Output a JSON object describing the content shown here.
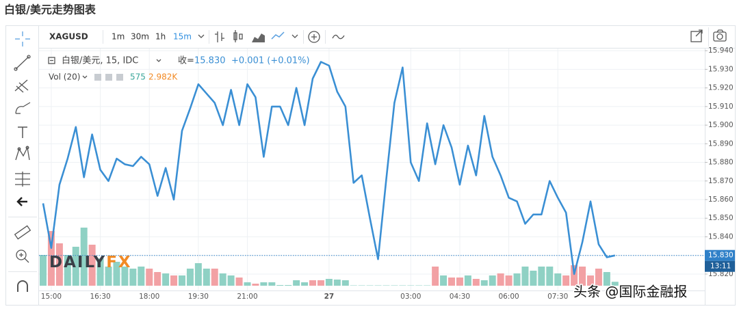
{
  "page": {
    "title": "白银/美元走势图表",
    "source": "头条 @国际金融报"
  },
  "toolbar": {
    "symbol": "XAGUSD",
    "intervals": [
      "1m",
      "30m",
      "1h",
      "15m"
    ]
  },
  "chart_data": {
    "type": "line",
    "title": "白银/美元, 15, IDC",
    "close_label": "收=",
    "close_value": "15.830",
    "change": "+0.001 (+0.01%)",
    "watermark": [
      "DAILY",
      "FX"
    ],
    "categories": [
      null,
      "15:00",
      null,
      null,
      null,
      null,
      null,
      "16:30",
      null,
      null,
      null,
      null,
      null,
      "18:00",
      null,
      null,
      null,
      null,
      null,
      "19:30",
      null,
      null,
      null,
      null,
      null,
      "21:00",
      null,
      null,
      null,
      null,
      null,
      null,
      null,
      null,
      null,
      "27",
      null,
      null,
      null,
      null,
      null,
      null,
      null,
      null,
      null,
      "03:00",
      null,
      null,
      null,
      null,
      null,
      "04:30",
      null,
      null,
      null,
      null,
      null,
      "06:00",
      null,
      null,
      null,
      null,
      null,
      "07:30",
      null,
      null,
      null,
      null,
      null,
      null,
      null
    ],
    "series": [
      {
        "name": "XAGUSD",
        "color": "#3a8fd4",
        "values": [
          15.858,
          15.834,
          15.868,
          15.882,
          15.899,
          15.872,
          15.895,
          15.876,
          15.87,
          15.882,
          15.879,
          15.878,
          15.883,
          15.879,
          15.862,
          15.877,
          15.86,
          15.897,
          15.909,
          15.922,
          15.917,
          15.912,
          15.9,
          15.919,
          15.9,
          15.922,
          15.915,
          15.883,
          15.91,
          15.91,
          15.9,
          15.92,
          15.9,
          15.925,
          15.934,
          15.932,
          15.918,
          15.91,
          15.869,
          15.873,
          15.85,
          15.828,
          15.871,
          15.912,
          15.931,
          15.88,
          15.87,
          15.901,
          15.879,
          15.9,
          15.888,
          15.868,
          15.889,
          15.873,
          15.905,
          15.883,
          15.873,
          15.861,
          15.859,
          15.847,
          15.852,
          15.852,
          15.87,
          15.861,
          15.853,
          15.82,
          15.837,
          15.859,
          15.836,
          15.829,
          15.83
        ]
      }
    ],
    "ylim": [
      15.813,
      15.943
    ],
    "yticks": [
      {
        "value": 15.82,
        "label": "15.820"
      },
      {
        "value": 15.83,
        "label": "15.830"
      },
      {
        "value": 15.84,
        "label": "15.840"
      },
      {
        "value": 15.85,
        "label": "15.850"
      },
      {
        "value": 15.86,
        "label": "15.860"
      },
      {
        "value": 15.87,
        "label": "15.870"
      },
      {
        "value": 15.88,
        "label": "15.880"
      },
      {
        "value": 15.89,
        "label": "15.890"
      },
      {
        "value": 15.9,
        "label": "15.900"
      },
      {
        "value": 15.91,
        "label": "15.910"
      },
      {
        "value": 15.92,
        "label": "15.920"
      },
      {
        "value": 15.93,
        "label": "15.930"
      },
      {
        "value": 15.94,
        "label": "15.940"
      }
    ],
    "grid": true,
    "last_price": {
      "value": 15.83,
      "label": "15.830",
      "countdown": "13:11",
      "color": "#2f80c8"
    },
    "volume": {
      "name": "Vol (20)",
      "last_label": "575",
      "ma_label": "2.982K",
      "ylim": [
        0,
        12000
      ],
      "values": [
        4500,
        8000,
        6200,
        4500,
        5700,
        8500,
        6000,
        4000,
        2800,
        3500,
        2800,
        2500,
        2800,
        2500,
        2000,
        1800,
        1500,
        1500,
        2500,
        3300,
        2500,
        2500,
        1800,
        1500,
        1200,
        500,
        300,
        500,
        500,
        100,
        100,
        800,
        500,
        800,
        800,
        1000,
        900,
        800,
        50,
        50,
        50,
        50,
        50,
        50,
        50,
        50,
        50,
        50,
        2800,
        1500,
        1200,
        1200,
        1500,
        1000,
        800,
        1500,
        1800,
        1500,
        1800,
        2800,
        2200,
        2800,
        2800,
        1800,
        1500,
        3000,
        2800,
        1500,
        2500,
        2000,
        575
      ],
      "colors": [
        "#8fd1c4",
        "#f2a1a4",
        "#f2a1a4",
        "#8fd1c4",
        "#8fd1c4",
        "#8fd1c4",
        "#f2a1a4",
        "#8fd1c4",
        "#8fd1c4",
        "#8fd1c4",
        "#8fd1c4",
        "#8fd1c4",
        "#8fd1c4",
        "#f2a1a4",
        "#f2a1a4",
        "#8fd1c4",
        "#f2a1a4",
        "#8fd1c4",
        "#8fd1c4",
        "#8fd1c4",
        "#8fd1c4",
        "#f2a1a4",
        "#8fd1c4",
        "#8fd1c4",
        "#f2a1a4",
        "#8fd1c4",
        "#f2a1a4",
        "#8fd1c4",
        "#8fd1c4",
        "#8fd1c4",
        "#8fd1c4",
        "#8fd1c4",
        "#8fd1c4",
        "#f2a1a4",
        "#f2a1a4",
        "#8fd1c4",
        "#8fd1c4",
        "#8fd1c4",
        "#8fd1c4",
        "#8fd1c4",
        "#8fd1c4",
        "#8fd1c4",
        "#8fd1c4",
        "#8fd1c4",
        "#8fd1c4",
        "#8fd1c4",
        "#8fd1c4",
        "#8fd1c4",
        "#f2a1a4",
        "#8fd1c4",
        "#f2a1a4",
        "#f2a1a4",
        "#8fd1c4",
        "#f2a1a4",
        "#8fd1c4",
        "#8fd1c4",
        "#f2a1a4",
        "#f2a1a4",
        "#8fd1c4",
        "#8fd1c4",
        "#8fd1c4",
        "#8fd1c4",
        "#8fd1c4",
        "#8fd1c4",
        "#f2a1a4",
        "#f2a1a4",
        "#f2a1a4",
        "#f2a1a4",
        "#f2a1a4",
        "#8fd1c4",
        "#8fd1c4"
      ]
    }
  }
}
